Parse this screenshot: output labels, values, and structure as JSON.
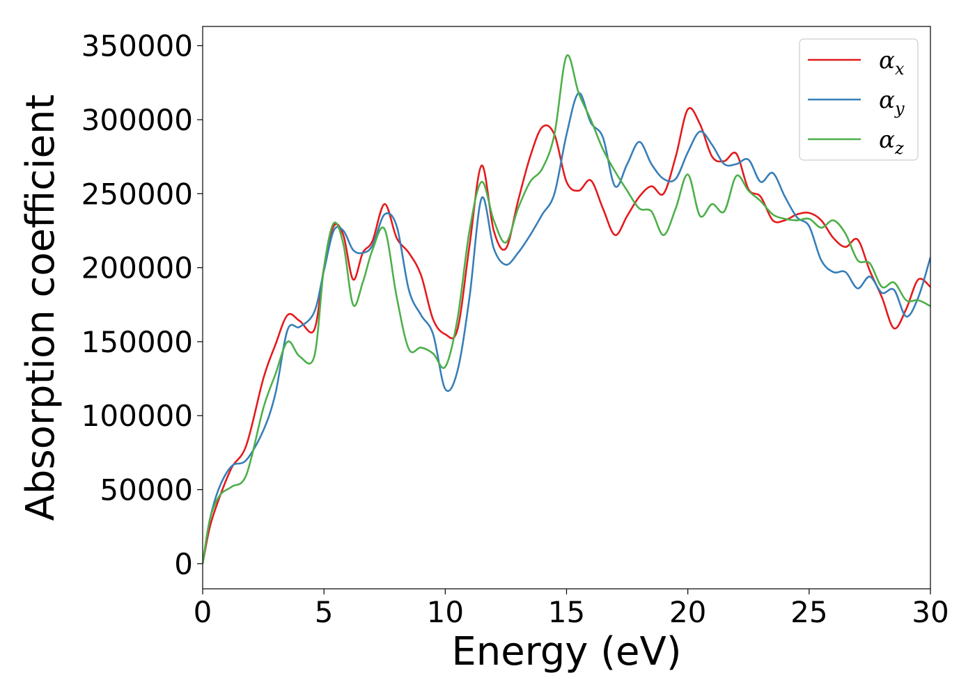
{
  "chart_data": {
    "type": "line",
    "xlabel": "Energy (eV)",
    "ylabel": "Absorption coefficient",
    "xlim": [
      0,
      30
    ],
    "ylim": [
      -17000,
      363000
    ],
    "xticks": [
      0,
      5,
      10,
      15,
      20,
      25,
      30
    ],
    "xtick_labels": [
      "0",
      "5",
      "10",
      "15",
      "20",
      "25",
      "30"
    ],
    "yticks": [
      0,
      50000,
      100000,
      150000,
      200000,
      250000,
      300000,
      350000
    ],
    "ytick_labels": [
      "0",
      "50000",
      "100000",
      "150000",
      "200000",
      "250000",
      "300000",
      "350000"
    ],
    "grid": false,
    "legend_position": "top-right",
    "series": [
      {
        "name": "αx",
        "symbol": "α",
        "subscript": "x",
        "color": "#e41a1c",
        "x": [
          0,
          0.3,
          0.7,
          1.2,
          1.8,
          2.5,
          3.0,
          3.5,
          4.0,
          4.6,
          5.0,
          5.4,
          5.8,
          6.2,
          6.6,
          7.0,
          7.5,
          8.0,
          8.5,
          9.0,
          9.5,
          10.0,
          10.5,
          11.0,
          11.5,
          12.0,
          12.5,
          13.0,
          13.5,
          14.0,
          14.5,
          15.0,
          15.5,
          16.0,
          16.5,
          17.0,
          17.5,
          18.0,
          18.5,
          19.0,
          19.5,
          20.0,
          20.5,
          21.0,
          21.5,
          22.0,
          22.5,
          23.0,
          23.5,
          24.0,
          24.5,
          25.0,
          25.5,
          26.0,
          26.5,
          27.0,
          27.5,
          28.0,
          28.5,
          29.0,
          29.5,
          30.0
        ],
        "y": [
          0,
          25000,
          45000,
          65000,
          80000,
          125000,
          148000,
          168000,
          164000,
          158000,
          200000,
          228000,
          222000,
          192000,
          210000,
          218000,
          243000,
          220000,
          210000,
          195000,
          165000,
          155000,
          158000,
          215000,
          269000,
          225000,
          213000,
          245000,
          275000,
          295000,
          290000,
          258000,
          252000,
          259000,
          240000,
          222000,
          235000,
          248000,
          255000,
          250000,
          275000,
          307000,
          297000,
          275000,
          272000,
          277000,
          253000,
          248000,
          232000,
          232000,
          236000,
          237000,
          232000,
          220000,
          214000,
          219000,
          198000,
          180000,
          159000,
          172000,
          192000,
          187000
        ]
      },
      {
        "name": "αy",
        "symbol": "α",
        "subscript": "y",
        "color": "#377eb8",
        "x": [
          0,
          0.3,
          0.7,
          1.2,
          1.8,
          2.5,
          3.0,
          3.5,
          4.0,
          4.6,
          5.0,
          5.4,
          5.8,
          6.2,
          6.6,
          7.0,
          7.5,
          8.0,
          8.5,
          9.0,
          9.5,
          10.0,
          10.5,
          11.0,
          11.5,
          12.0,
          12.5,
          13.0,
          13.5,
          14.0,
          14.5,
          15.0,
          15.5,
          16.0,
          16.5,
          17.0,
          17.5,
          18.0,
          18.5,
          19.0,
          19.5,
          20.0,
          20.5,
          21.0,
          21.5,
          22.0,
          22.5,
          23.0,
          23.5,
          24.0,
          24.5,
          25.0,
          25.5,
          26.0,
          26.5,
          27.0,
          27.5,
          28.0,
          28.5,
          29.0,
          29.5,
          30.0
        ],
        "y": [
          0,
          30000,
          52000,
          66000,
          70000,
          90000,
          115000,
          158000,
          160000,
          170000,
          198000,
          225000,
          225000,
          212000,
          210000,
          215000,
          236000,
          228000,
          185000,
          168000,
          155000,
          118000,
          130000,
          180000,
          247000,
          213000,
          202000,
          210000,
          222000,
          236000,
          250000,
          290000,
          318000,
          298000,
          288000,
          255000,
          270000,
          285000,
          270000,
          260000,
          260000,
          278000,
          292000,
          283000,
          270000,
          270000,
          273000,
          258000,
          264000,
          248000,
          234000,
          228000,
          205000,
          197000,
          197000,
          186000,
          194000,
          183000,
          185000,
          167000,
          180000,
          207000
        ]
      },
      {
        "name": "αz",
        "symbol": "α",
        "subscript": "z",
        "color": "#4daf4a",
        "x": [
          0,
          0.3,
          0.7,
          1.2,
          1.8,
          2.5,
          3.0,
          3.5,
          4.0,
          4.6,
          5.0,
          5.4,
          5.8,
          6.2,
          6.6,
          7.0,
          7.5,
          8.0,
          8.5,
          9.0,
          9.5,
          10.0,
          10.5,
          11.0,
          11.5,
          12.0,
          12.5,
          13.0,
          13.5,
          14.0,
          14.5,
          15.0,
          15.5,
          16.0,
          16.5,
          17.0,
          17.5,
          18.0,
          18.5,
          19.0,
          19.5,
          20.0,
          20.5,
          21.0,
          21.5,
          22.0,
          22.5,
          23.0,
          23.5,
          24.0,
          24.5,
          25.0,
          25.5,
          26.0,
          26.5,
          27.0,
          27.5,
          28.0,
          28.5,
          29.0,
          29.5,
          30.0
        ],
        "y": [
          0,
          30000,
          46000,
          52000,
          60000,
          105000,
          128000,
          150000,
          140000,
          140000,
          200000,
          230000,
          216000,
          175000,
          190000,
          212000,
          226000,
          180000,
          145000,
          146000,
          142000,
          133000,
          165000,
          225000,
          258000,
          232000,
          217000,
          240000,
          258000,
          267000,
          290000,
          343000,
          318000,
          300000,
          280000,
          265000,
          252000,
          240000,
          238000,
          222000,
          240000,
          263000,
          235000,
          243000,
          238000,
          262000,
          252000,
          245000,
          236000,
          233000,
          232000,
          233000,
          227000,
          232000,
          223000,
          205000,
          203000,
          187000,
          190000,
          178000,
          178000,
          174000
        ]
      }
    ]
  }
}
